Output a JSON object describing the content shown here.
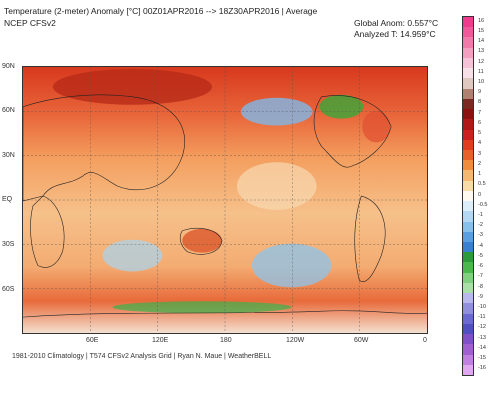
{
  "header": {
    "title": "Temperature (2-meter) Anomaly  [°C] 00Z01APR2016 --> 18Z30APR2016 | Average",
    "source": "NCEP CFSv2",
    "global_anom": "Global Anom: 0.557°C",
    "analyzed_t": "Analyzed T: 14.959°C"
  },
  "map": {
    "lat_labels": [
      "90N",
      "60N",
      "30N",
      "EQ",
      "30S",
      "60S"
    ],
    "lon_labels": [
      "60E",
      "120E",
      "180",
      "120W",
      "60W",
      "0"
    ]
  },
  "footer": {
    "text": "1981-2010 Climatology | T574 CFSv2 Analysis Grid | Ryan N. Maue | WeatherBELL"
  },
  "colorbar": {
    "labels": [
      "16",
      "15",
      "14",
      "13",
      "12",
      "11",
      "10",
      "9",
      "8",
      "7",
      "6",
      "5",
      "4",
      "3",
      "2",
      "1",
      "0.5",
      "0",
      "-0.5",
      "-1",
      "-2",
      "-3",
      "-4",
      "-5",
      "-6",
      "-7",
      "-8",
      "-9",
      "-10",
      "-11",
      "-12",
      "-13",
      "-14",
      "-15",
      "-16"
    ],
    "colors": [
      "#f03c8c",
      "#f05a9a",
      "#f07aaa",
      "#f3a0c0",
      "#f6c2d6",
      "#f8e0e8",
      "#dfc8c0",
      "#b08070",
      "#7a2a20",
      "#8b1010",
      "#b01818",
      "#cc2020",
      "#e03c20",
      "#e8602a",
      "#f08c3c",
      "#f5b870",
      "#f8dca8",
      "#fffaf0",
      "#dceefa",
      "#b4d8f4",
      "#88c0ec",
      "#5aa0e0",
      "#3a80d0",
      "#2a9a3a",
      "#4ab84a",
      "#7fd07f",
      "#a8e0a8",
      "#b8b8ec",
      "#9090dc",
      "#6a6ad0",
      "#5050c0",
      "#8050c8",
      "#a060d0",
      "#c080e0",
      "#e0a8f0"
    ]
  }
}
